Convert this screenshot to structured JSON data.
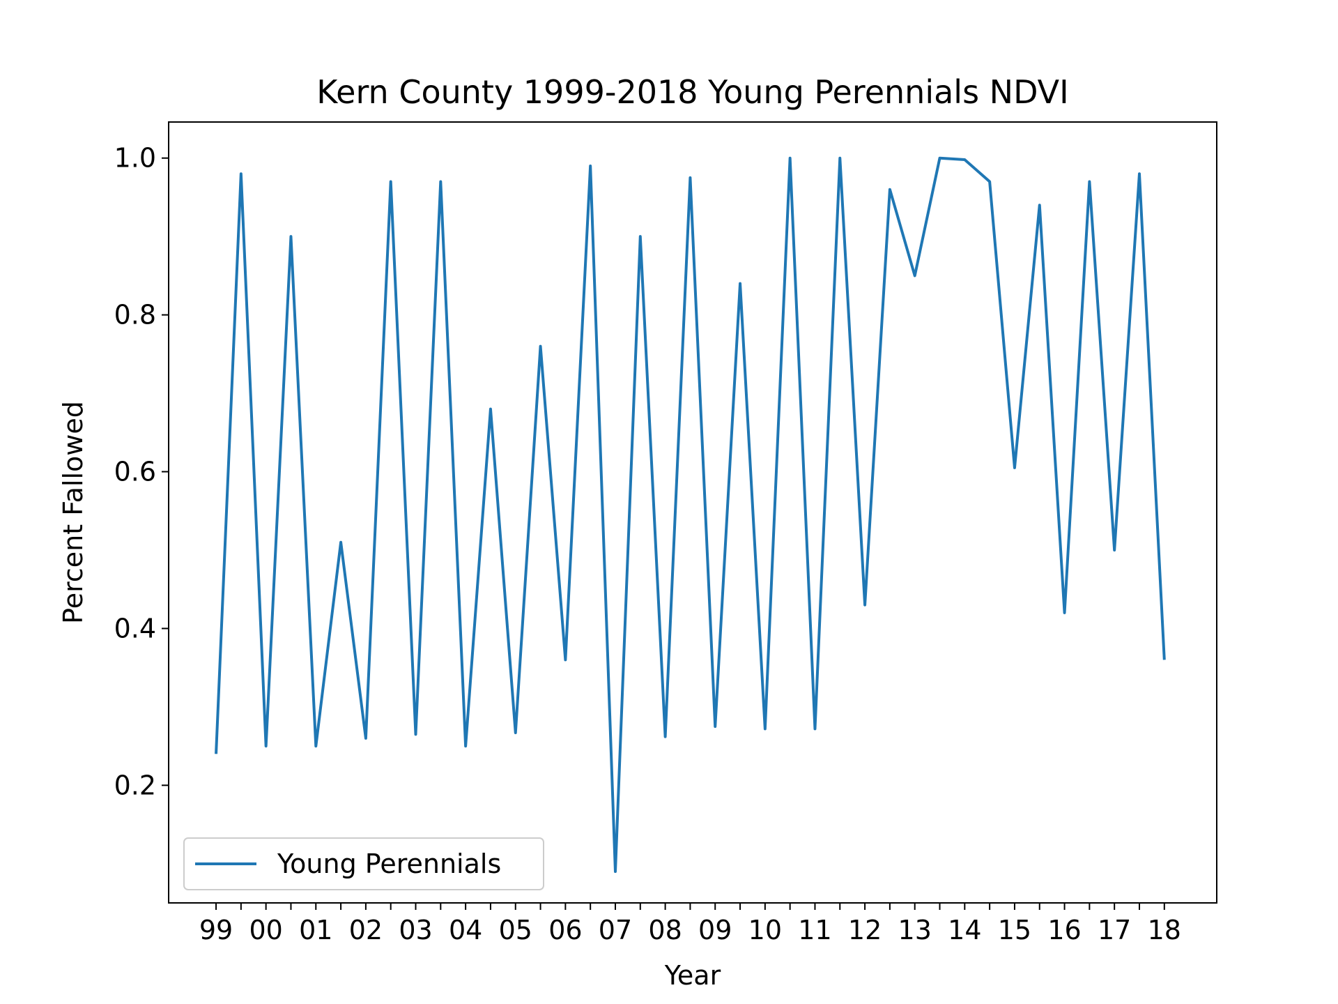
{
  "chart_data": {
    "type": "line",
    "title": "Kern County 1999-2018 Young Perennials NDVI",
    "xlabel": "Year",
    "ylabel": "Percent Fallowed",
    "x": [
      0,
      0.5,
      1,
      1.5,
      2,
      2.5,
      3,
      3.5,
      4,
      4.5,
      5,
      5.5,
      6,
      6.5,
      7,
      7.5,
      8,
      8.5,
      9,
      9.5,
      10,
      10.5,
      11,
      11.5,
      12,
      12.5,
      13,
      13.5,
      14,
      14.5,
      15,
      15.5,
      16,
      16.5,
      17,
      17.5,
      18,
      18.5,
      19
    ],
    "xlim": [
      -0.95,
      20.05
    ],
    "ylim": [
      0.05,
      1.046
    ],
    "xticks": [
      0,
      1,
      2,
      3,
      4,
      5,
      6,
      7,
      8,
      9,
      10,
      11,
      12,
      13,
      14,
      15,
      16,
      17,
      18,
      19
    ],
    "xtick_labels": [
      "99",
      "00",
      "01",
      "02",
      "03",
      "04",
      "05",
      "06",
      "07",
      "08",
      "09",
      "10",
      "11",
      "12",
      "13",
      "14",
      "15",
      "16",
      "17",
      "18"
    ],
    "xminor_ticks": [
      0.5,
      1.5,
      2.5,
      3.5,
      4.5,
      5.5,
      6.5,
      7.5,
      8.5,
      9.5,
      10.5,
      11.5,
      12.5,
      13.5,
      14.5,
      15.5,
      16.5,
      17.5,
      18.5
    ],
    "yticks": [
      0.2,
      0.4,
      0.6,
      0.8,
      1.0
    ],
    "ytick_labels": [
      "0.2",
      "0.4",
      "0.6",
      "0.8",
      "1.0"
    ],
    "grid": false,
    "legend": "lower-left",
    "series": [
      {
        "name": "Young Perennials",
        "color": "#1f77b4",
        "values": [
          0.24,
          0.98,
          0.25,
          0.9,
          0.25,
          0.51,
          0.26,
          0.97,
          0.265,
          0.97,
          0.25,
          0.68,
          0.267,
          0.76,
          0.36,
          0.99,
          0.09,
          0.9,
          0.262,
          0.975,
          0.275,
          0.84,
          0.272,
          1.0,
          0.272,
          1.0,
          0.43,
          0.96,
          0.85,
          1.0,
          0.998,
          0.97,
          0.605,
          0.94,
          0.42,
          0.97,
          0.5,
          0.98,
          0.36
        ]
      }
    ]
  }
}
